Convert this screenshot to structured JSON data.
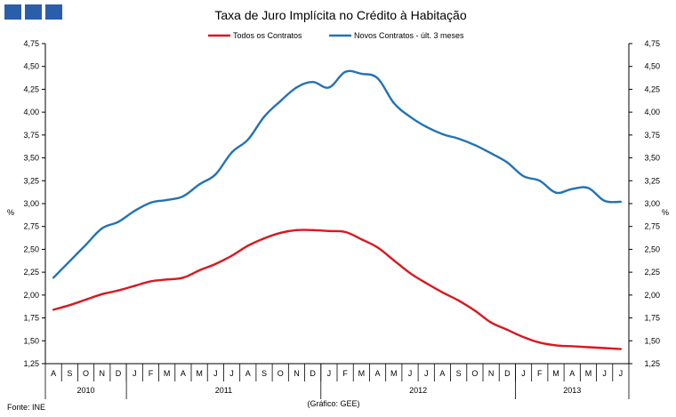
{
  "colors": {
    "brand": "#2b5eaa",
    "red_series": "#d9181f",
    "blue_series": "#2273b5"
  },
  "logo_icon": "three-blue-squares-logo",
  "chart_data": {
    "type": "line",
    "title": "Taxa de Juro Implícita no Crédito à Habitação",
    "ylabel_left": "%",
    "ylabel_right": "%",
    "ylim": [
      1.25,
      4.75
    ],
    "yticks": [
      "1,25",
      "1,50",
      "1,75",
      "2,00",
      "2,25",
      "2,50",
      "2,75",
      "3,00",
      "3,25",
      "3,50",
      "3,75",
      "4,00",
      "4,25",
      "4,50",
      "4,75"
    ],
    "categories": [
      "A",
      "S",
      "O",
      "N",
      "D",
      "J",
      "F",
      "M",
      "A",
      "M",
      "J",
      "J",
      "A",
      "S",
      "O",
      "N",
      "D",
      "J",
      "F",
      "M",
      "A",
      "M",
      "J",
      "J",
      "A",
      "S",
      "O",
      "N",
      "D",
      "J",
      "F",
      "M",
      "A",
      "M",
      "J",
      "J"
    ],
    "years": [
      {
        "label": "2010",
        "start": 0,
        "end": 5
      },
      {
        "label": "2011",
        "start": 5,
        "end": 17
      },
      {
        "label": "2012",
        "start": 17,
        "end": 29
      },
      {
        "label": "2013",
        "start": 29,
        "end": 36
      }
    ],
    "series": [
      {
        "name": "Todos os Contratos",
        "color": "#d9181f",
        "values": [
          1.84,
          1.89,
          1.95,
          2.01,
          2.05,
          2.1,
          2.15,
          2.17,
          2.19,
          2.27,
          2.34,
          2.43,
          2.54,
          2.62,
          2.68,
          2.71,
          2.71,
          2.7,
          2.69,
          2.61,
          2.52,
          2.38,
          2.24,
          2.13,
          2.03,
          1.94,
          1.83,
          1.7,
          1.62,
          1.54,
          1.48,
          1.45,
          1.44,
          1.43,
          1.42,
          1.41
        ]
      },
      {
        "name": "Novos Contratos - últ. 3 meses",
        "color": "#2273b5",
        "values": [
          2.19,
          2.37,
          2.55,
          2.73,
          2.8,
          2.92,
          3.01,
          3.04,
          3.08,
          3.21,
          3.32,
          3.56,
          3.7,
          3.95,
          4.12,
          4.27,
          4.33,
          4.27,
          4.44,
          4.42,
          4.37,
          4.1,
          3.95,
          3.84,
          3.76,
          3.71,
          3.64,
          3.55,
          3.45,
          3.3,
          3.25,
          3.12,
          3.16,
          3.17,
          3.03,
          3.02
        ]
      }
    ]
  },
  "source_note": "Fonte: INE",
  "credit_note": "(Gráfico: GEE)"
}
